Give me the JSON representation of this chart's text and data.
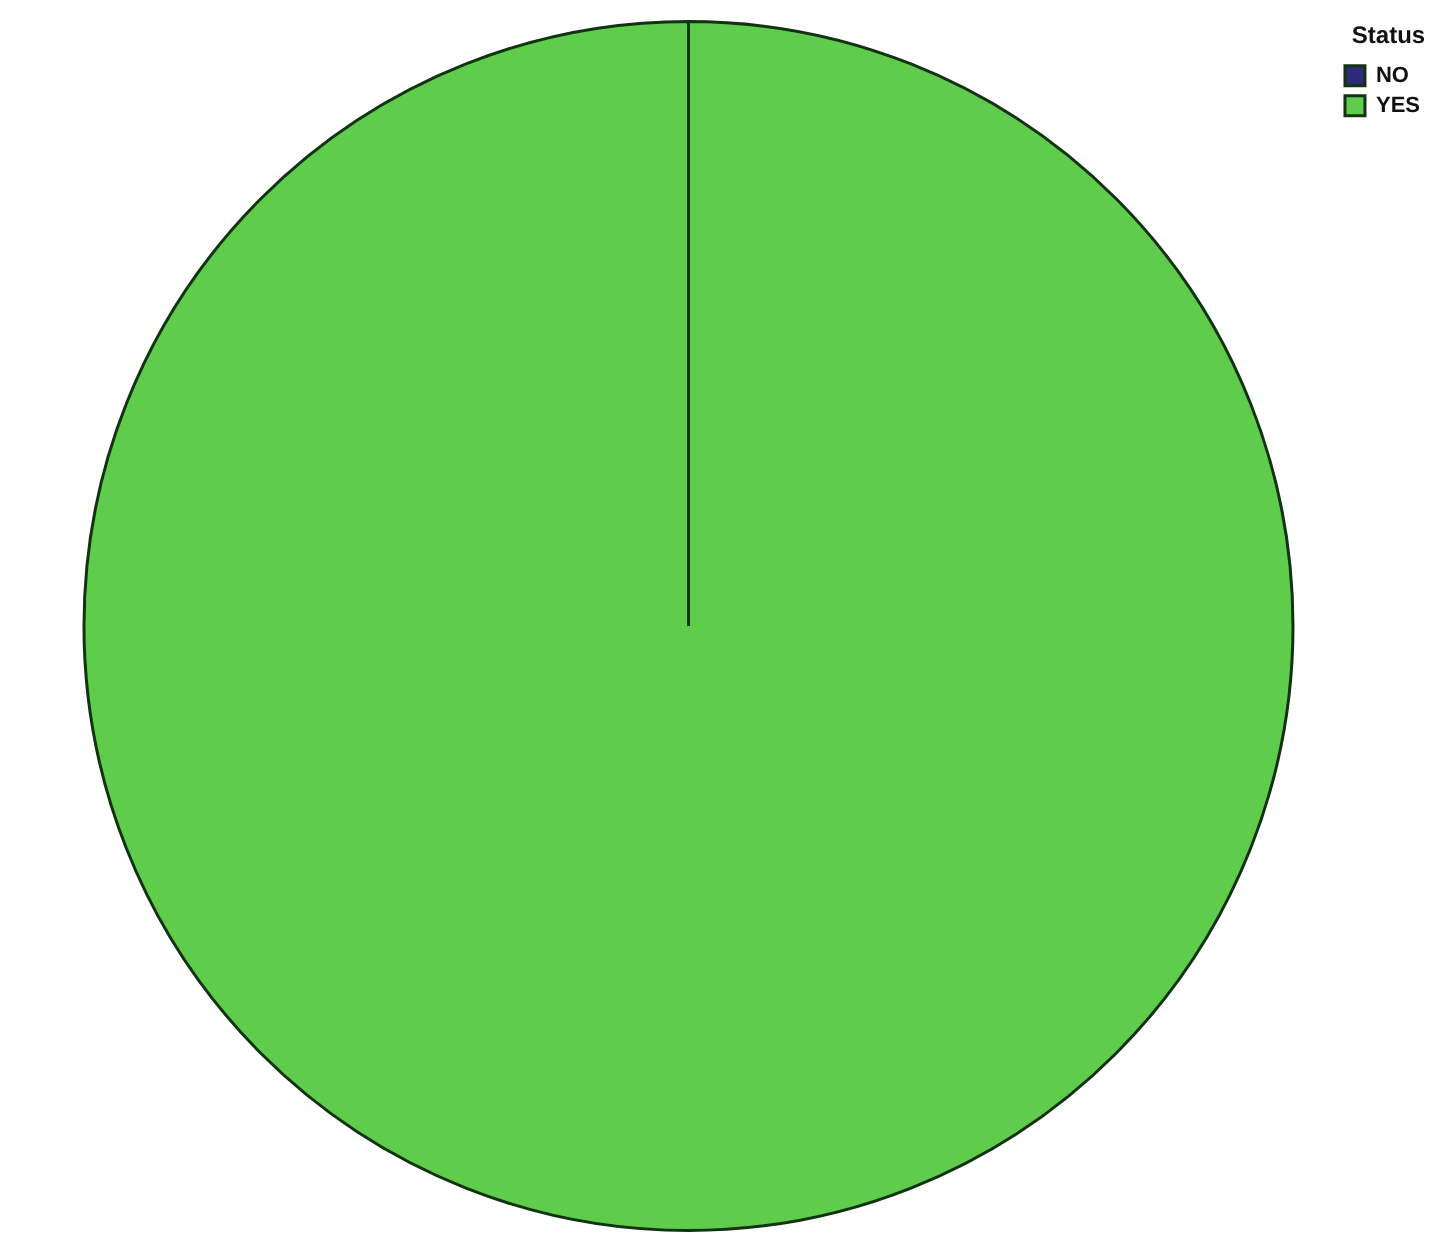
{
  "chart_data": {
    "type": "pie",
    "legend_title": "Status",
    "categories": [
      "NO",
      "YES"
    ],
    "values": [
      0,
      100
    ],
    "colors": [
      "#2e2a78",
      "#5fcc4c"
    ],
    "legend": "top right"
  }
}
